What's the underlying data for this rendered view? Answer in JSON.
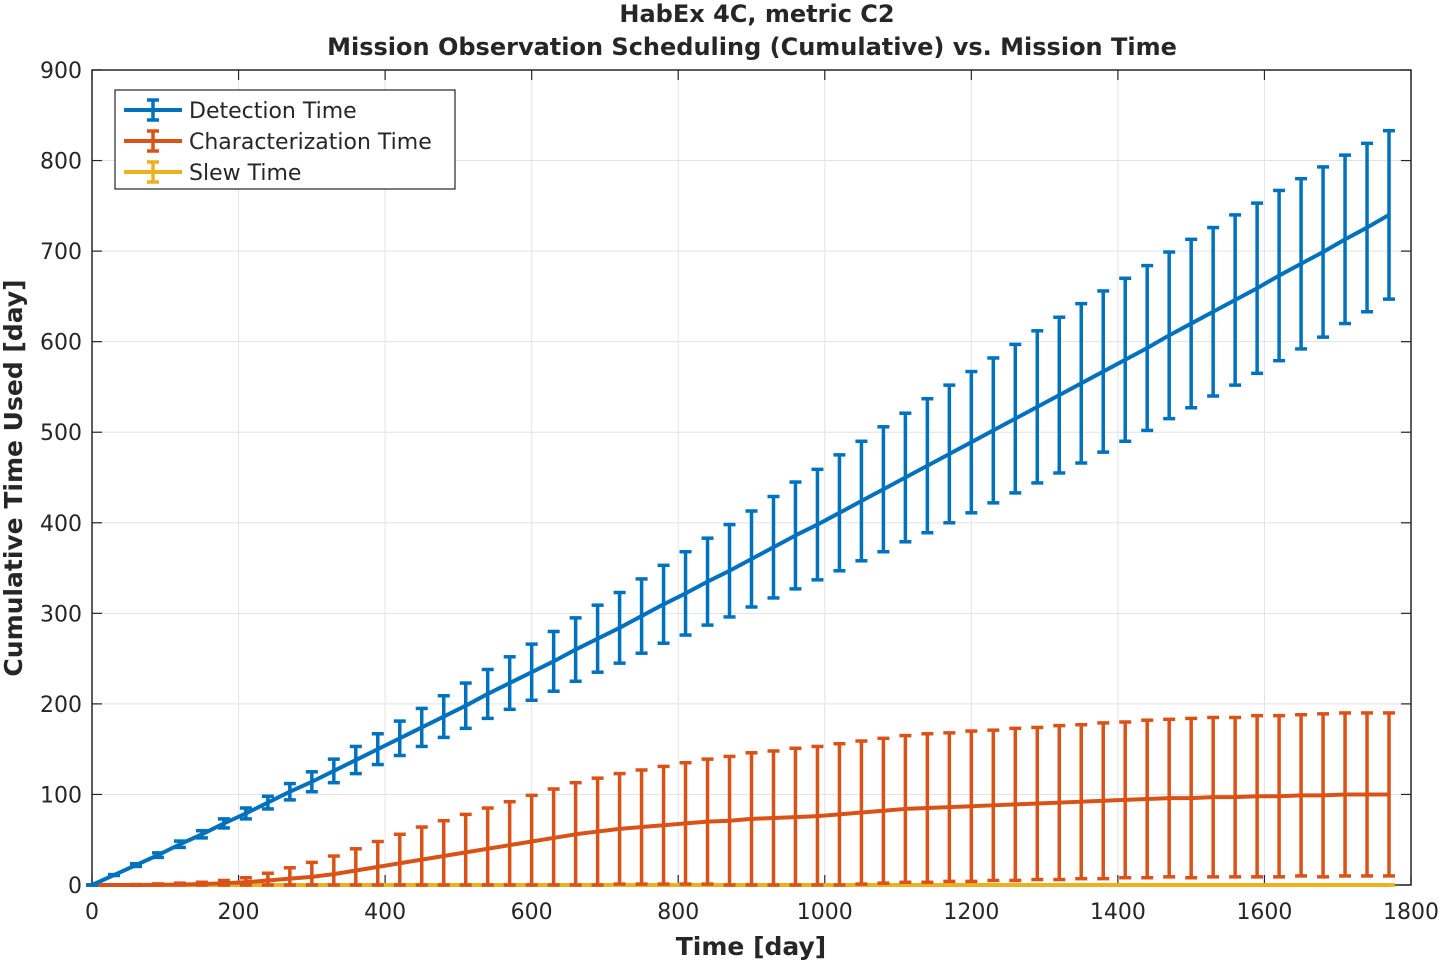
{
  "chart_data": {
    "type": "line",
    "title": "HabEx 4C, metric C2",
    "subtitle": "Mission Observation Scheduling (Cumulative) vs. Mission Time",
    "xlabel": "Time [day]",
    "ylabel": "Cumulative Time Used [day]",
    "xlim": [
      0,
      1800
    ],
    "ylim": [
      0,
      900
    ],
    "xticks": [
      0,
      200,
      400,
      600,
      800,
      1000,
      1200,
      1400,
      1600,
      1800
    ],
    "yticks": [
      0,
      100,
      200,
      300,
      400,
      500,
      600,
      700,
      800,
      900
    ],
    "xtick_labels": [
      "0",
      "200",
      "400",
      "600",
      "800",
      "1000",
      "1200",
      "1400",
      "1600",
      "1800"
    ],
    "ytick_labels": [
      "0",
      "100",
      "200",
      "300",
      "400",
      "500",
      "600",
      "700",
      "800",
      "900"
    ],
    "grid": true,
    "legend_position": "top-left",
    "x": [
      0,
      30,
      60,
      90,
      120,
      150,
      180,
      210,
      240,
      270,
      300,
      330,
      360,
      390,
      420,
      450,
      480,
      510,
      540,
      570,
      600,
      630,
      660,
      690,
      720,
      750,
      780,
      810,
      840,
      870,
      900,
      930,
      960,
      990,
      1020,
      1050,
      1080,
      1110,
      1140,
      1170,
      1200,
      1230,
      1260,
      1290,
      1320,
      1350,
      1380,
      1410,
      1440,
      1470,
      1500,
      1530,
      1560,
      1590,
      1620,
      1650,
      1680,
      1710,
      1740,
      1770
    ],
    "series": [
      {
        "name": "Detection Time",
        "color": "#0072BD",
        "values": [
          0,
          11,
          22,
          33,
          45,
          56,
          68,
          79,
          91,
          103,
          114,
          126,
          138,
          150,
          162,
          174,
          186,
          198,
          211,
          223,
          235,
          247,
          260,
          272,
          284,
          297,
          310,
          322,
          335,
          347,
          360,
          373,
          386,
          398,
          411,
          424,
          437,
          450,
          463,
          476,
          489,
          502,
          515,
          528,
          541,
          554,
          567,
          580,
          593,
          607,
          620,
          633,
          646,
          659,
          673,
          686,
          699,
          713,
          726,
          740
        ],
        "err": [
          0,
          0.5,
          1.5,
          2.5,
          3.5,
          4,
          5,
          6,
          7,
          9,
          11,
          13,
          15,
          17,
          19,
          21,
          23,
          25,
          27,
          29,
          31,
          33,
          35,
          37,
          39,
          41,
          43,
          46,
          48,
          51,
          53,
          56,
          59,
          61,
          64,
          66,
          69,
          71,
          74,
          76,
          78,
          80,
          82,
          84,
          86,
          88,
          89,
          90,
          91,
          92,
          93,
          93,
          94,
          94,
          94,
          94,
          94,
          93,
          93,
          93
        ]
      },
      {
        "name": "Characterization Time",
        "color": "#D95319",
        "values": [
          0,
          0,
          0,
          0.2,
          0.5,
          1,
          2,
          3,
          5,
          7,
          9,
          12,
          16,
          20,
          24,
          28,
          32,
          36,
          40,
          44,
          48,
          52,
          56,
          59,
          62,
          64,
          66,
          68,
          70,
          71,
          73,
          74,
          75,
          76,
          78,
          80,
          82,
          84,
          85,
          86,
          87,
          88,
          89,
          90,
          91,
          92,
          93,
          94,
          95,
          96,
          96,
          97,
          97,
          98,
          98,
          99,
          99,
          100,
          100,
          100
        ],
        "err": [
          0,
          0,
          0.5,
          1,
          1.5,
          2,
          3,
          5,
          8,
          12,
          16,
          20,
          24,
          28,
          32,
          36,
          39,
          42,
          45,
          48,
          51,
          54,
          57,
          59,
          61,
          63,
          65,
          67,
          69,
          71,
          73,
          74,
          76,
          77,
          78,
          79,
          80,
          81,
          82,
          82,
          83,
          83,
          84,
          84,
          85,
          85,
          86,
          86,
          87,
          87,
          88,
          88,
          88,
          89,
          89,
          89,
          90,
          90,
          90,
          90
        ]
      },
      {
        "name": "Slew Time",
        "color": "#EDB120",
        "values": [
          0,
          0,
          0,
          0,
          0,
          0,
          0,
          0,
          0,
          0,
          0,
          0,
          0,
          0,
          0,
          0,
          0,
          0,
          0,
          0,
          0,
          0,
          0,
          0,
          0,
          0,
          0,
          0,
          0,
          0,
          0,
          0,
          0,
          0,
          0,
          0,
          0,
          0,
          0,
          0,
          0,
          0,
          0,
          0,
          0,
          0,
          0,
          0,
          0,
          0,
          0,
          0,
          0,
          0,
          0,
          0,
          0,
          0,
          0,
          0
        ],
        "err": [
          0,
          0,
          0,
          0,
          0,
          0,
          0,
          0,
          0,
          0,
          0,
          0,
          0,
          0,
          0,
          0,
          0,
          0,
          0,
          0,
          0,
          0,
          0,
          0,
          0,
          0,
          0,
          0,
          0,
          0,
          0,
          0,
          0,
          0,
          0,
          0,
          0,
          0,
          0,
          0,
          0,
          0,
          0,
          0,
          0,
          0,
          0,
          0,
          0,
          0,
          0,
          0,
          0,
          0,
          0,
          0,
          0,
          0,
          0,
          0
        ]
      }
    ]
  }
}
